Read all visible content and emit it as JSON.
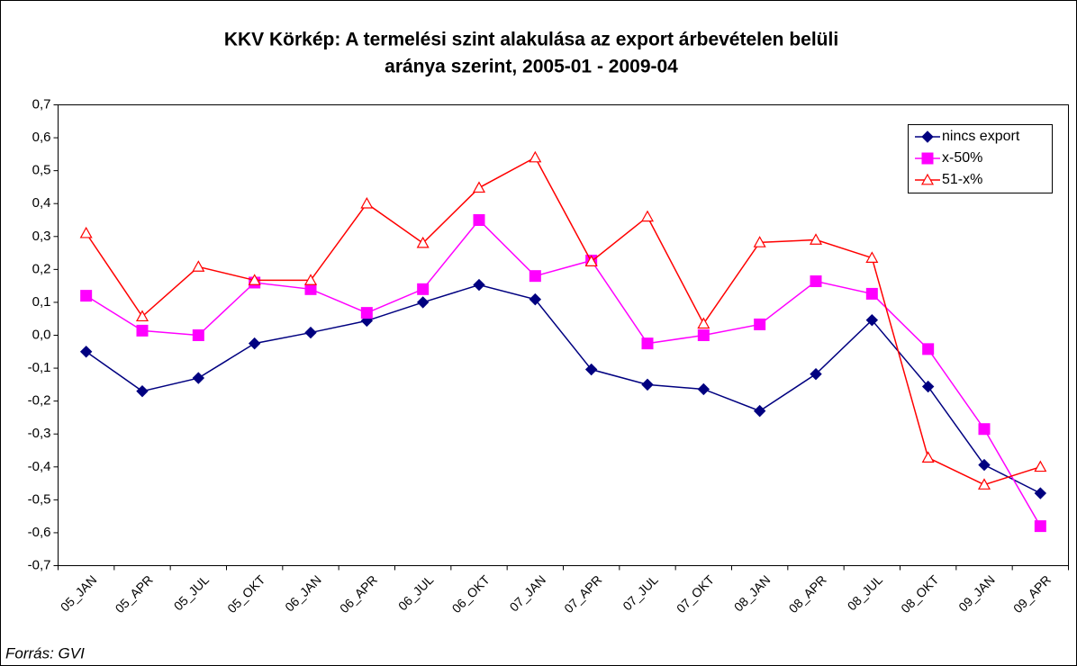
{
  "chart_data": {
    "type": "line",
    "title": [
      "KKV Körkép: A termelési szint alakulása az export árbevételen belüli",
      "aránya szerint, 2005-01 - 2009-04"
    ],
    "source": "Forrás: GVI",
    "categories": [
      "05_JAN",
      "05_APR",
      "05_JUL",
      "05_OKT",
      "06_JAN",
      "06_APR",
      "06_JUL",
      "06_OKT",
      "07_JAN",
      "07_APR",
      "07_JUL",
      "07_OKT",
      "08_JAN",
      "08_APR",
      "08_JUL",
      "08_OKT",
      "09_JAN",
      "09_APR"
    ],
    "series": [
      {
        "name": "nincs export",
        "color": "#000080",
        "marker": "diamond",
        "values": [
          -0.05,
          -0.17,
          -0.13,
          -0.025,
          0.008,
          0.044,
          0.1,
          0.153,
          0.109,
          -0.104,
          -0.15,
          -0.164,
          -0.23,
          -0.118,
          0.046,
          -0.156,
          -0.394,
          -0.48
        ]
      },
      {
        "name": "x-50%",
        "color": "#ff00ff",
        "marker": "square",
        "values": [
          0.12,
          0.014,
          0.0,
          0.16,
          0.14,
          0.068,
          0.14,
          0.35,
          0.18,
          0.227,
          -0.025,
          0.0,
          0.033,
          0.164,
          0.126,
          -0.042,
          -0.285,
          -0.58
        ]
      },
      {
        "name": "51-x%",
        "color": "#ff0000",
        "marker": "triangle",
        "values": [
          0.31,
          0.057,
          0.208,
          0.167,
          0.167,
          0.4,
          0.28,
          0.448,
          0.54,
          0.224,
          0.36,
          0.035,
          0.282,
          0.29,
          0.235,
          -0.372,
          -0.454,
          -0.4
        ]
      }
    ],
    "ylim": [
      -0.7,
      0.7
    ],
    "yticks": [
      {
        "value": -0.7,
        "label": "-0,7"
      },
      {
        "value": -0.6,
        "label": "-0,6"
      },
      {
        "value": -0.5,
        "label": "-0,5"
      },
      {
        "value": -0.4,
        "label": "-0,4"
      },
      {
        "value": -0.3,
        "label": "-0,3"
      },
      {
        "value": -0.2,
        "label": "-0,2"
      },
      {
        "value": -0.1,
        "label": "-0,1"
      },
      {
        "value": 0,
        "label": "0,0"
      },
      {
        "value": 0.1,
        "label": "0,1"
      },
      {
        "value": 0.2,
        "label": "0,2"
      },
      {
        "value": 0.3,
        "label": "0,3"
      },
      {
        "value": 0.4,
        "label": "0,4"
      },
      {
        "value": 0.5,
        "label": "0,5"
      },
      {
        "value": 0.6,
        "label": "0,6"
      },
      {
        "value": 0.7,
        "label": "0,7"
      }
    ],
    "grid": false,
    "legend": "top-right"
  }
}
